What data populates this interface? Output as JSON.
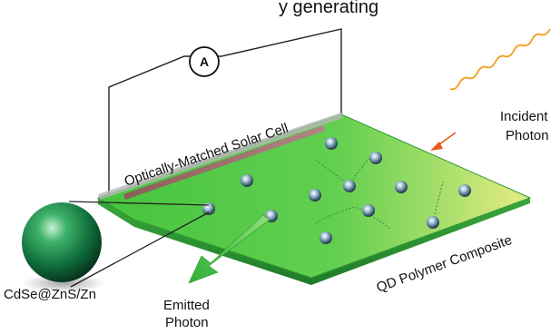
{
  "header_partial": "y generating",
  "ammeter_label": "A",
  "solar_cell_label": "Optically-Matched Solar Cell",
  "incident_label": [
    "Incident",
    "Photon"
  ],
  "composite_label": "QD Polymer Composite",
  "qd_label": "CdSe@ZnS/Zn",
  "emitted_label": [
    "Emitted",
    "Photon"
  ],
  "colors": {
    "slab_top_light": "#8fe07a",
    "slab_top_dark": "#39b83c",
    "slab_edge": "#2e9a34",
    "solar_cell": "#9b6b66",
    "arrow_green": "#46c23a",
    "incident_arrow": "#e85a20",
    "incident_wave": "#f0a020",
    "wire": "#222222"
  }
}
